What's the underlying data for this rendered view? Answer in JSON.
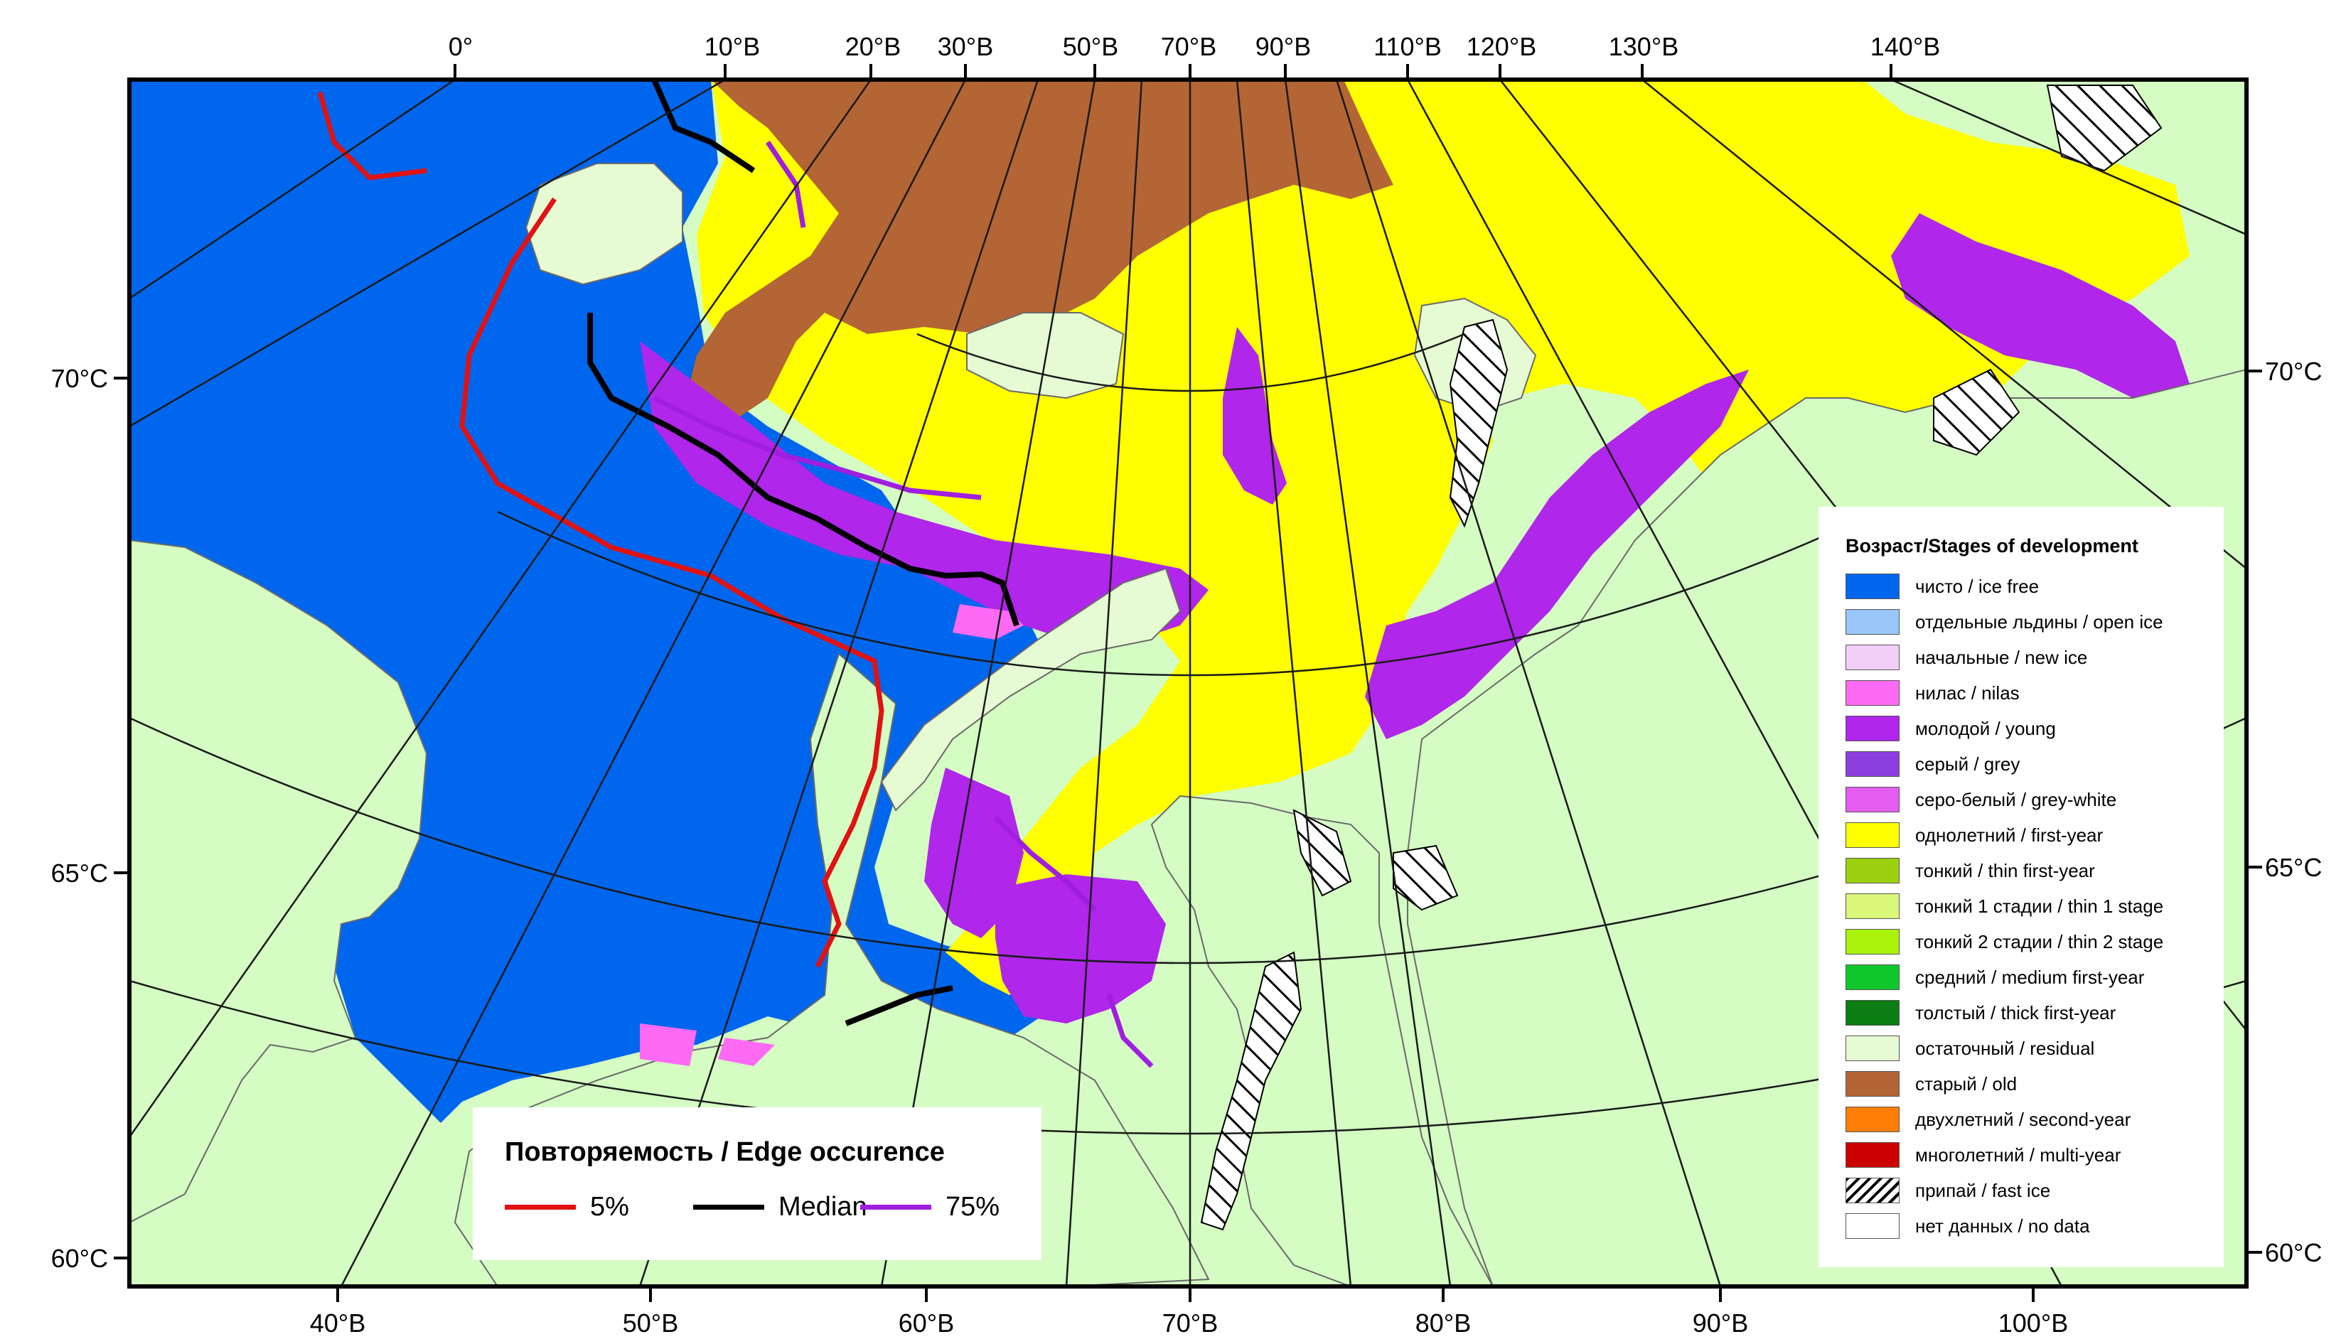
{
  "map": {
    "colors": {
      "background": "#d4fcc3",
      "ice_free": "#0066ee",
      "first_year": "#ffff00",
      "young": "#b026ea",
      "nilas": "#ff6af5",
      "old": "#b36535",
      "residual": "#e6fad3",
      "land_outline": "#6a6a6a",
      "grid": "#1a1a1a"
    },
    "top_labels": [
      "0°",
      "10°В",
      "20°В",
      "30°В",
      "50°В",
      "70°В",
      "90°В",
      "110°В",
      "120°В",
      "130°В",
      "140°В"
    ],
    "bottom_labels": [
      "40°В",
      "50°В",
      "60°В",
      "70°В",
      "80°В",
      "90°В",
      "100°В"
    ],
    "left_labels": [
      "70°С",
      "65°С",
      "60°С"
    ],
    "right_labels": [
      "70°С",
      "65°С",
      "60°С"
    ]
  },
  "stages_legend": {
    "title": "Возраст/Stages of development",
    "items": [
      {
        "label": "чисто / ice free",
        "color": "#0066ee",
        "pattern": "solid"
      },
      {
        "label": "отдельные льдины / open ice",
        "color": "#99c7fb",
        "pattern": "solid"
      },
      {
        "label": "начальные / new ice",
        "color": "#f2cff7",
        "pattern": "solid"
      },
      {
        "label": "нилас / nilas",
        "color": "#ff6af5",
        "pattern": "solid"
      },
      {
        "label": "молодой / young",
        "color": "#b026ea",
        "pattern": "solid"
      },
      {
        "label": "серый / grey",
        "color": "#8a3fde",
        "pattern": "solid"
      },
      {
        "label": "серо-белый / grey-white",
        "color": "#e45df0",
        "pattern": "solid"
      },
      {
        "label": "однолетний / first-year",
        "color": "#ffff00",
        "pattern": "solid"
      },
      {
        "label": "тонкий / thin first-year",
        "color": "#9bd10f",
        "pattern": "solid"
      },
      {
        "label": "тонкий 1 стадии / thin 1 stage",
        "color": "#daf77a",
        "pattern": "solid"
      },
      {
        "label": "тонкий 2 стадии / thin 2 stage",
        "color": "#aaf20c",
        "pattern": "solid"
      },
      {
        "label": "средний / medium first-year",
        "color": "#10c82c",
        "pattern": "solid"
      },
      {
        "label": "толстый / thick first-year",
        "color": "#0b7d12",
        "pattern": "solid"
      },
      {
        "label": "остаточный / residual",
        "color": "#e6fad3",
        "pattern": "solid"
      },
      {
        "label": "старый / old",
        "color": "#b36535",
        "pattern": "solid"
      },
      {
        "label": "двухлетний / second-year",
        "color": "#ff7e05",
        "pattern": "solid"
      },
      {
        "label": "многолетний / multi-year",
        "color": "#cc0000",
        "pattern": "solid"
      },
      {
        "label": "припай / fast ice",
        "color": "#ffffff",
        "pattern": "hatch"
      },
      {
        "label": "нет данных / no data",
        "color": "#ffffff",
        "pattern": "solid"
      }
    ]
  },
  "edge_legend": {
    "title": "Повторяемость / Edge occurence",
    "items": [
      {
        "label": "5%",
        "color": "#e01212"
      },
      {
        "label": "Median",
        "color": "#000000"
      },
      {
        "label": "75%",
        "color": "#a01ee0"
      }
    ]
  }
}
